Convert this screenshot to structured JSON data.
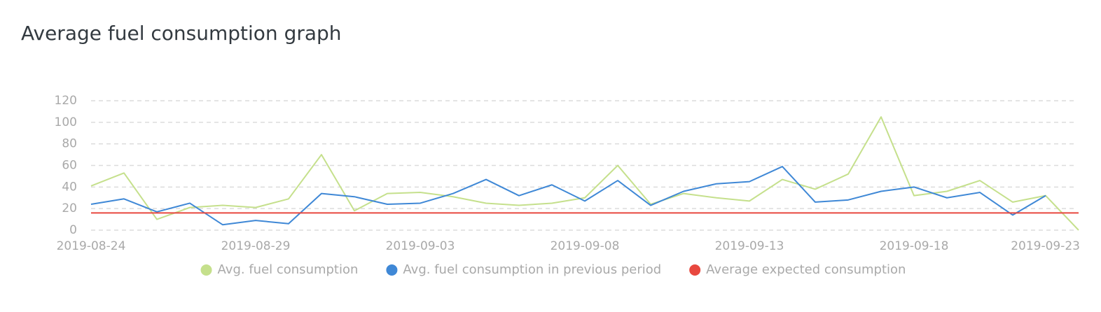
{
  "chart_data": {
    "type": "line",
    "title": "Average fuel consumption graph",
    "x": [
      "2019-08-24",
      "2019-08-25",
      "2019-08-26",
      "2019-08-27",
      "2019-08-28",
      "2019-08-29",
      "2019-08-30",
      "2019-08-31",
      "2019-09-01",
      "2019-09-02",
      "2019-09-03",
      "2019-09-04",
      "2019-09-05",
      "2019-09-06",
      "2019-09-07",
      "2019-09-08",
      "2019-09-09",
      "2019-09-10",
      "2019-09-11",
      "2019-09-12",
      "2019-09-13",
      "2019-09-14",
      "2019-09-15",
      "2019-09-16",
      "2019-09-17",
      "2019-09-18",
      "2019-09-19",
      "2019-09-20",
      "2019-09-21",
      "2019-09-22",
      "2019-09-23"
    ],
    "xticks": [
      "2019-08-24",
      "2019-08-29",
      "2019-09-03",
      "2019-09-08",
      "2019-09-13",
      "2019-09-18",
      "2019-09-23"
    ],
    "ylim": [
      0,
      120
    ],
    "yticks": [
      0,
      20,
      40,
      60,
      80,
      100,
      120
    ],
    "grid": true,
    "series": [
      {
        "name": "Avg. fuel consumption",
        "color": "#c5e08c",
        "values": [
          41,
          53,
          10,
          21,
          23,
          21,
          29,
          70,
          18,
          34,
          35,
          31,
          25,
          23,
          25,
          30,
          60,
          24,
          34,
          30,
          27,
          47,
          38,
          52,
          105,
          32,
          36,
          46,
          26,
          32,
          0
        ]
      },
      {
        "name": "Avg. fuel consumption in previous period",
        "color": "#3f88d6",
        "values": [
          24,
          29,
          17,
          25,
          5,
          9,
          6,
          34,
          31,
          24,
          25,
          34,
          47,
          32,
          42,
          27,
          46,
          23,
          36,
          43,
          45,
          59,
          26,
          28,
          36,
          40,
          30,
          35,
          14,
          32,
          null
        ]
      },
      {
        "name": "Average expected consumption",
        "color": "#e8483f",
        "values": [
          16,
          16,
          16,
          16,
          16,
          16,
          16,
          16,
          16,
          16,
          16,
          16,
          16,
          16,
          16,
          16,
          16,
          16,
          16,
          16,
          16,
          16,
          16,
          16,
          16,
          16,
          16,
          16,
          16,
          16,
          16
        ]
      }
    ]
  }
}
